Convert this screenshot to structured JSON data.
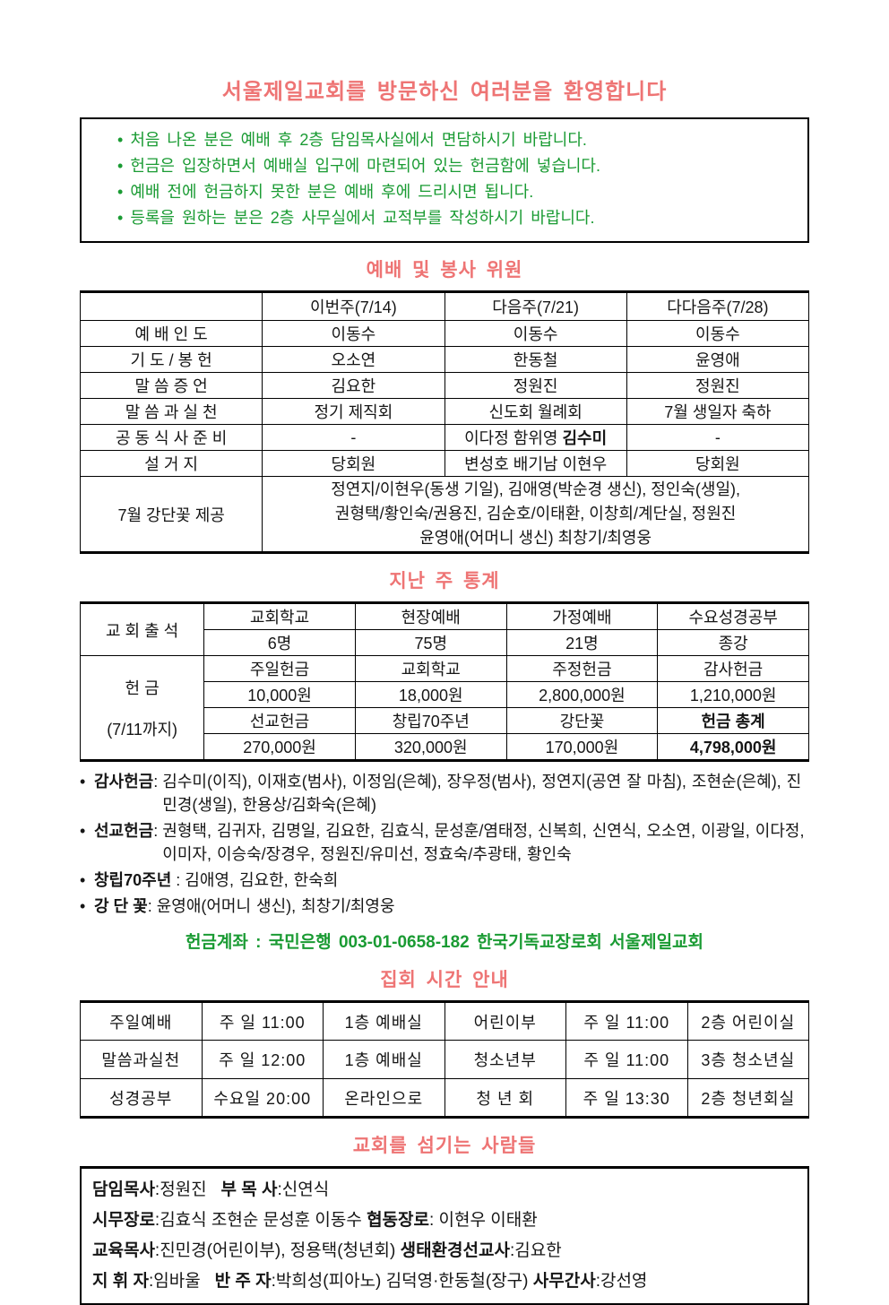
{
  "colors": {
    "heading_salmon": "#ee7474",
    "text_green": "#1a9b33",
    "border_black": "#000000"
  },
  "welcome": {
    "title": "서울제일교회를 방문하신 여러분을 환영합니다",
    "bullet": "•",
    "notes": [
      "처음 나온 분은 예배 후 2층 담임목사실에서 면담하시기 바랍니다.",
      "헌금은 입장하면서 예배실 입구에 마련되어 있는 헌금함에 넣습니다.",
      "예배 전에 헌금하지 못한 분은 예배 후에 드리시면 됩니다.",
      "등록을 원하는 분은 2층 사무실에서 교적부를 작성하시기 바랍니다."
    ]
  },
  "worship": {
    "heading": "예배 및 봉사 위원",
    "col_headers": [
      "이번주(7/14)",
      "다음주(7/21)",
      "다다음주(7/28)"
    ],
    "rows": [
      {
        "label": "예 배 인 도",
        "cells": [
          "이동수",
          "이동수",
          "이동수"
        ]
      },
      {
        "label": "기 도 / 봉 헌",
        "cells": [
          "오소연",
          "한동철",
          "윤영애"
        ]
      },
      {
        "label": "말 씀 증 언",
        "cells": [
          "김요한",
          "정원진",
          "정원진"
        ]
      },
      {
        "label": "말 씀 과 실 천",
        "cells": [
          "정기 제직회",
          "신도회 월례회",
          "7월 생일자 축하"
        ]
      },
      {
        "label": "공 동 식 사 준 비",
        "cells": [
          "-",
          {
            "pre": "이다정 함위영 ",
            "bold": "김수미"
          },
          "-"
        ]
      },
      {
        "label": "설 거 지",
        "cells": [
          "당회원",
          "변성호 배기남 이현우",
          "당회원"
        ]
      }
    ],
    "flower": {
      "label": "7월 강단꽃 제공",
      "lines": [
        "정연지/이현우(동생 기일), 김애영(박순경 생신), 정인숙(생일),",
        "권형택/황인숙/권용진, 김순호/이태환, 이창희/계단실, 정원진",
        "윤영애(어머니 생신) 최창기/최영웅"
      ]
    }
  },
  "stats": {
    "heading": "지난 주 통계",
    "attendance": {
      "label": "교 회 출 석",
      "headers": [
        "교회학교",
        "현장예배",
        "가정예배",
        "수요성경공부"
      ],
      "values": [
        "6명",
        "75명",
        "21명",
        "종강"
      ]
    },
    "offering": {
      "label_line1": "헌 금",
      "label_line2": "(7/11까지)",
      "row1_headers": [
        "주일헌금",
        "교회학교",
        "주정헌금",
        "감사헌금"
      ],
      "row1_values": [
        "10,000원",
        "18,000원",
        "2,800,000원",
        "1,210,000원"
      ],
      "row2_headers": [
        "선교헌금",
        "창립70주년",
        "강단꽃",
        "헌금 총계"
      ],
      "row2_values": [
        "270,000원",
        "320,000원",
        "170,000원",
        "4,798,000원"
      ]
    }
  },
  "offering_notes": {
    "bullet": "•",
    "items": [
      {
        "label": "감사헌금",
        "sep": ": ",
        "text": "김수미(이직), 이재호(범사), 이정임(은혜), 장우정(범사), 정연지(공연 잘 마침), 조현순(은혜), 진민경(생일), 한용상/김화숙(은혜)"
      },
      {
        "label": "선교헌금",
        "sep": ": ",
        "text": "권형택, 김귀자, 김명일, 김요한, 김효식, 문성훈/염태정, 신복희, 신연식, 오소연, 이광일, 이다정, 이미자, 이승숙/장경우, 정원진/유미선, 정효숙/추광태, 황인숙"
      },
      {
        "label": "창립70주년",
        "sep": " : ",
        "text": "김애영, 김요한, 한숙희"
      },
      {
        "label": "강 단 꽃",
        "sep": ": ",
        "text": "윤영애(어머니 생신), 최창기/최영웅"
      }
    ],
    "account": "헌금계좌 : 국민은행 003-01-0658-182 한국기독교장로회 서울제일교회"
  },
  "schedule": {
    "heading": "집회 시간 안내",
    "rows": [
      [
        "주일예배",
        "주 일 11:00",
        "1층 예배실",
        "어린이부",
        "주 일 11:00",
        "2층 어린이실"
      ],
      [
        "말씀과실천",
        "주 일 12:00",
        "1층 예배실",
        "청소년부",
        "주 일 11:00",
        "3층 청소년실"
      ],
      [
        "성경공부",
        "수요일 20:00",
        "온라인으로",
        "청 년 회",
        "주 일 13:30",
        "2층 청년회실"
      ]
    ]
  },
  "servants": {
    "heading": "교회를 섬기는 사람들",
    "lines": [
      [
        "담임목사",
        ":정원진   ",
        "부 목 사",
        ":신연식"
      ],
      [
        "시무장로",
        ":김효식 조현순 문성훈 이동수 ",
        "협동장로",
        ": 이현우 이태환"
      ],
      [
        "교육목사",
        ":진민경(어린이부), 정용택(청년회) ",
        "생태환경선교사",
        ":김요한"
      ],
      [
        "지 휘 자",
        ":임바울   ",
        "반 주 자",
        ":박희성(피아노) 김덕영·한동철(장구) ",
        "사무간사",
        ":강선영"
      ]
    ]
  }
}
